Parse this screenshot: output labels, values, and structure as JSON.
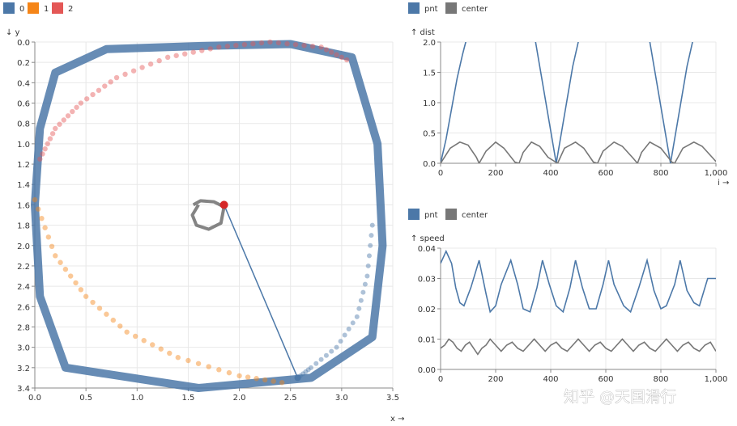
{
  "watermark": "知乎 @天国滑行",
  "chart_data": [
    {
      "type": "scatter",
      "legend": [
        {
          "name": "0",
          "color": "#4c78a8"
        },
        {
          "name": "1",
          "color": "#f58518"
        },
        {
          "name": "2",
          "color": "#e45756"
        }
      ],
      "xlabel": "x →",
      "ylabel": "↓ y",
      "xlim": [
        0,
        3.5
      ],
      "ylim": [
        0,
        3.4
      ],
      "y_reversed": true,
      "x_ticks": [
        "0.0",
        "0.5",
        "1.0",
        "1.5",
        "2.0",
        "2.5",
        "3.0",
        "3.5"
      ],
      "y_ticks": [
        "0.0",
        "0.2",
        "0.4",
        "0.6",
        "0.8",
        "1.0",
        "1.2",
        "1.4",
        "1.6",
        "1.8",
        "2.0",
        "2.2",
        "2.4",
        "2.6",
        "2.8",
        "3.0",
        "3.2",
        "3.4"
      ],
      "grid": true,
      "series": [
        {
          "name": "0",
          "color": "#4c78a8",
          "description_points": [
            [
              0.05,
              0.85
            ],
            [
              0.2,
              0.3
            ],
            [
              0.7,
              0.07
            ],
            [
              1.6,
              0.04
            ],
            [
              2.5,
              0.02
            ],
            [
              3.1,
              0.15
            ],
            [
              3.35,
              1.0
            ],
            [
              3.4,
              2.0
            ],
            [
              3.3,
              2.9
            ],
            [
              2.7,
              3.3
            ],
            [
              1.6,
              3.4
            ],
            [
              0.3,
              3.2
            ],
            [
              0.05,
              2.5
            ],
            [
              0.0,
              1.6
            ]
          ]
        },
        {
          "name": "1",
          "color": "#f58518",
          "points": [
            [
              0.0,
              1.55
            ],
            [
              0.2,
              2.1
            ],
            [
              0.5,
              2.5
            ],
            [
              0.9,
              2.85
            ],
            [
              1.4,
              3.1
            ],
            [
              2.0,
              3.28
            ],
            [
              2.5,
              3.36
            ]
          ]
        },
        {
          "name": "2",
          "color": "#e45756",
          "points": [
            [
              0.05,
              1.15
            ],
            [
              0.2,
              0.85
            ],
            [
              0.45,
              0.6
            ],
            [
              0.8,
              0.35
            ],
            [
              1.3,
              0.15
            ],
            [
              1.8,
              0.05
            ],
            [
              2.3,
              0.0
            ],
            [
              2.8,
              0.05
            ],
            [
              3.1,
              0.2
            ]
          ]
        },
        {
          "name": "center-path",
          "color": "#777777",
          "points": [
            [
              1.55,
              1.6
            ],
            [
              1.62,
              1.56
            ],
            [
              1.75,
              1.57
            ],
            [
              1.85,
              1.62
            ],
            [
              1.82,
              1.78
            ],
            [
              1.7,
              1.84
            ],
            [
              1.58,
              1.8
            ],
            [
              1.54,
              1.7
            ],
            [
              1.6,
              1.6
            ]
          ]
        }
      ],
      "current_center": [
        1.85,
        1.6
      ],
      "current_point": [
        2.57,
        3.3
      ]
    },
    {
      "type": "line",
      "legend": [
        {
          "name": "pnt",
          "color": "#4c78a8"
        },
        {
          "name": "center",
          "color": "#777777"
        }
      ],
      "xlabel": "i →",
      "ylabel": "↑ dist",
      "xlim": [
        0,
        1000
      ],
      "ylim": [
        0,
        2.0
      ],
      "x_ticks": [
        "0",
        "200",
        "400",
        "600",
        "800",
        "1,000"
      ],
      "y_ticks": [
        "0.0",
        "0.5",
        "1.0",
        "1.5",
        "2.0"
      ],
      "grid": true,
      "series": [
        {
          "name": "pnt",
          "color": "#4c78a8",
          "x": [
            0,
            20,
            40,
            60,
            80,
            100,
            120,
            330,
            360,
            390,
            420,
            450,
            480,
            510,
            530,
            745,
            775,
            805,
            835,
            865,
            895,
            925,
            945
          ],
          "y": [
            0,
            0.4,
            0.9,
            1.4,
            1.8,
            2.15,
            2.4,
            2.4,
            1.6,
            0.8,
            0,
            0.8,
            1.6,
            2.2,
            2.4,
            2.4,
            1.6,
            0.8,
            0,
            0.8,
            1.6,
            2.2,
            2.4
          ]
        },
        {
          "name": "center",
          "color": "#777777",
          "x": [
            0,
            35,
            70,
            100,
            130,
            140,
            165,
            200,
            230,
            270,
            285,
            300,
            330,
            360,
            390,
            425,
            450,
            490,
            520,
            555,
            570,
            590,
            630,
            660,
            700,
            715,
            730,
            760,
            800,
            840,
            850,
            880,
            920,
            950,
            990,
            1000
          ],
          "y": [
            0,
            0.25,
            0.35,
            0.3,
            0.1,
            0.0,
            0.2,
            0.35,
            0.25,
            0.02,
            0.0,
            0.18,
            0.35,
            0.28,
            0.1,
            0.0,
            0.25,
            0.35,
            0.25,
            0.02,
            0.0,
            0.2,
            0.35,
            0.28,
            0.08,
            0.0,
            0.18,
            0.35,
            0.25,
            0.02,
            0.0,
            0.25,
            0.35,
            0.28,
            0.08,
            0.03
          ]
        }
      ]
    },
    {
      "type": "line",
      "legend": [
        {
          "name": "pnt",
          "color": "#4c78a8"
        },
        {
          "name": "center",
          "color": "#777777"
        }
      ],
      "xlabel": "",
      "ylabel": "↑ speed",
      "xlim": [
        0,
        1000
      ],
      "ylim": [
        0,
        0.04
      ],
      "x_ticks": [
        "0",
        "200",
        "400",
        "600",
        "800",
        "1,000"
      ],
      "y_ticks": [
        "0.00",
        "0.01",
        "0.02",
        "0.03",
        "0.04"
      ],
      "grid": true,
      "series": [
        {
          "name": "pnt",
          "color": "#4c78a8",
          "x": [
            0,
            20,
            40,
            55,
            70,
            85,
            110,
            140,
            165,
            180,
            200,
            220,
            255,
            280,
            300,
            325,
            350,
            370,
            395,
            420,
            445,
            470,
            490,
            515,
            540,
            565,
            590,
            610,
            630,
            665,
            690,
            720,
            750,
            775,
            800,
            820,
            850,
            870,
            895,
            920,
            940,
            970,
            1000
          ],
          "y": [
            0.035,
            0.039,
            0.035,
            0.027,
            0.022,
            0.021,
            0.027,
            0.036,
            0.025,
            0.019,
            0.021,
            0.028,
            0.036,
            0.028,
            0.02,
            0.019,
            0.027,
            0.036,
            0.028,
            0.021,
            0.019,
            0.027,
            0.036,
            0.027,
            0.02,
            0.02,
            0.028,
            0.036,
            0.028,
            0.021,
            0.019,
            0.027,
            0.036,
            0.026,
            0.02,
            0.021,
            0.028,
            0.036,
            0.026,
            0.022,
            0.021,
            0.03,
            0.03
          ]
        },
        {
          "name": "center",
          "color": "#777777",
          "x": [
            0,
            15,
            30,
            45,
            60,
            75,
            90,
            105,
            120,
            135,
            150,
            165,
            180,
            200,
            220,
            240,
            260,
            280,
            300,
            320,
            340,
            360,
            380,
            400,
            420,
            440,
            460,
            480,
            500,
            520,
            540,
            560,
            580,
            600,
            620,
            640,
            660,
            680,
            700,
            720,
            740,
            760,
            780,
            800,
            820,
            840,
            860,
            880,
            900,
            920,
            940,
            960,
            980,
            1000
          ],
          "y": [
            0.007,
            0.008,
            0.01,
            0.009,
            0.007,
            0.006,
            0.008,
            0.009,
            0.007,
            0.005,
            0.007,
            0.008,
            0.01,
            0.008,
            0.006,
            0.008,
            0.009,
            0.007,
            0.006,
            0.008,
            0.01,
            0.008,
            0.006,
            0.008,
            0.009,
            0.007,
            0.006,
            0.008,
            0.01,
            0.008,
            0.006,
            0.008,
            0.009,
            0.007,
            0.006,
            0.008,
            0.01,
            0.008,
            0.006,
            0.008,
            0.009,
            0.007,
            0.006,
            0.008,
            0.01,
            0.008,
            0.006,
            0.008,
            0.009,
            0.007,
            0.006,
            0.008,
            0.009,
            0.006
          ]
        }
      ]
    }
  ]
}
